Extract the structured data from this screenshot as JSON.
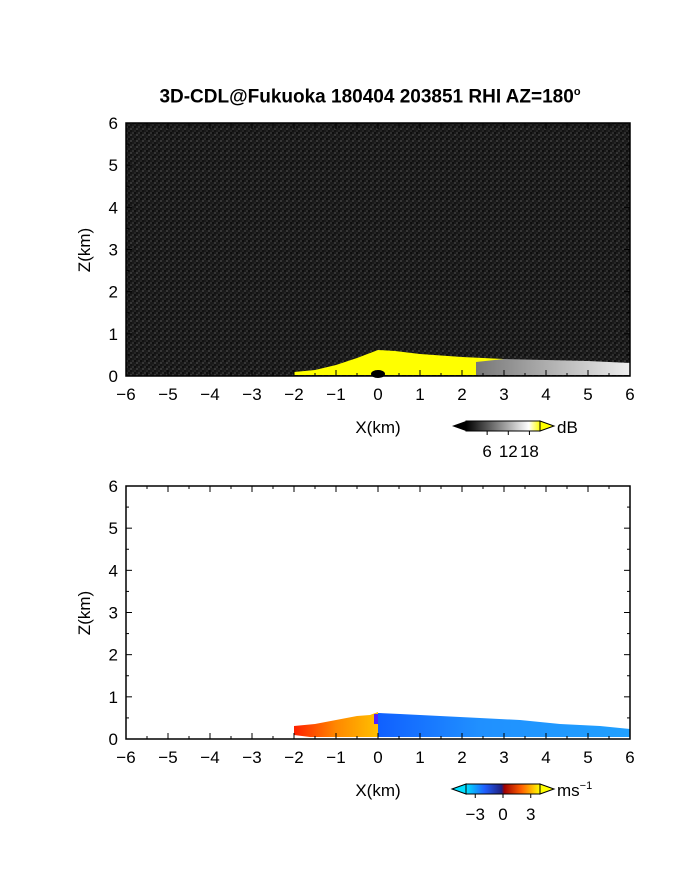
{
  "figure": {
    "title": "3D-CDL@Fukuoka 180404 203851 RHI AZ=180",
    "title_degree": "o"
  },
  "colors": {
    "noise_bg": "#1a1a1a",
    "echo_yellow": "#ffff00",
    "echo_white": "#e6e6e6",
    "frame": "#000000"
  },
  "chart_data": [
    {
      "type": "heatmap",
      "name": "backscatter-intensity",
      "xlabel": "X(km)",
      "ylabel": "Z(km)",
      "xlim": [
        -6,
        6
      ],
      "ylim": [
        0,
        6
      ],
      "xticks": [
        "-6",
        "-5",
        "-4",
        "-3",
        "-2",
        "-1",
        "0",
        "1",
        "2",
        "3",
        "4",
        "5",
        "6"
      ],
      "yticks": [
        "0",
        "1",
        "2",
        "3",
        "4",
        "5",
        "6"
      ],
      "background": "random noise (dark grey, low dB)",
      "colorbar": {
        "unit": "dB",
        "ticks": [
          "6",
          "12",
          "18"
        ],
        "range": [
          0,
          21
        ],
        "scale": "greyscale, yellow above max"
      },
      "echo_top_profile": {
        "x": [
          -2.0,
          -1.5,
          -1.0,
          -0.5,
          0.0,
          0.3,
          1.0,
          2.0,
          3.0,
          4.0,
          5.0,
          6.0
        ],
        "z": [
          0.28,
          0.3,
          0.38,
          0.5,
          0.58,
          0.55,
          0.5,
          0.45,
          0.4,
          0.38,
          0.35,
          0.32
        ]
      },
      "echo_regions": [
        {
          "x_range": [
            -2.0,
            3.0
          ],
          "value": "≥18 dB (yellow)"
        },
        {
          "x_range": [
            3.0,
            6.0
          ],
          "value": "12–18 dB (light grey to white)"
        }
      ]
    },
    {
      "type": "heatmap",
      "name": "radial-velocity",
      "xlabel": "X(km)",
      "ylabel": "Z(km)",
      "xlim": [
        -6,
        6
      ],
      "ylim": [
        0,
        6
      ],
      "xticks": [
        "-6",
        "-5",
        "-4",
        "-3",
        "-2",
        "-1",
        "0",
        "1",
        "2",
        "3",
        "4",
        "5",
        "6"
      ],
      "yticks": [
        "0",
        "1",
        "2",
        "3",
        "4",
        "5",
        "6"
      ],
      "colorbar": {
        "unit": "ms",
        "unit_exponent": "−1",
        "ticks": [
          "−3",
          "0",
          "3"
        ],
        "range": [
          -4,
          4
        ]
      },
      "velocity_regions": [
        {
          "x_range": [
            -2.0,
            0.0
          ],
          "z_top": [
            0.3,
            0.55
          ],
          "velocity_ms": 2.5,
          "description": "positive (red/orange)"
        },
        {
          "x_range": [
            0.0,
            6.0
          ],
          "z_top": [
            0.6,
            0.2
          ],
          "velocity_ms": -2.5,
          "description": "negative (blue)"
        }
      ]
    }
  ]
}
